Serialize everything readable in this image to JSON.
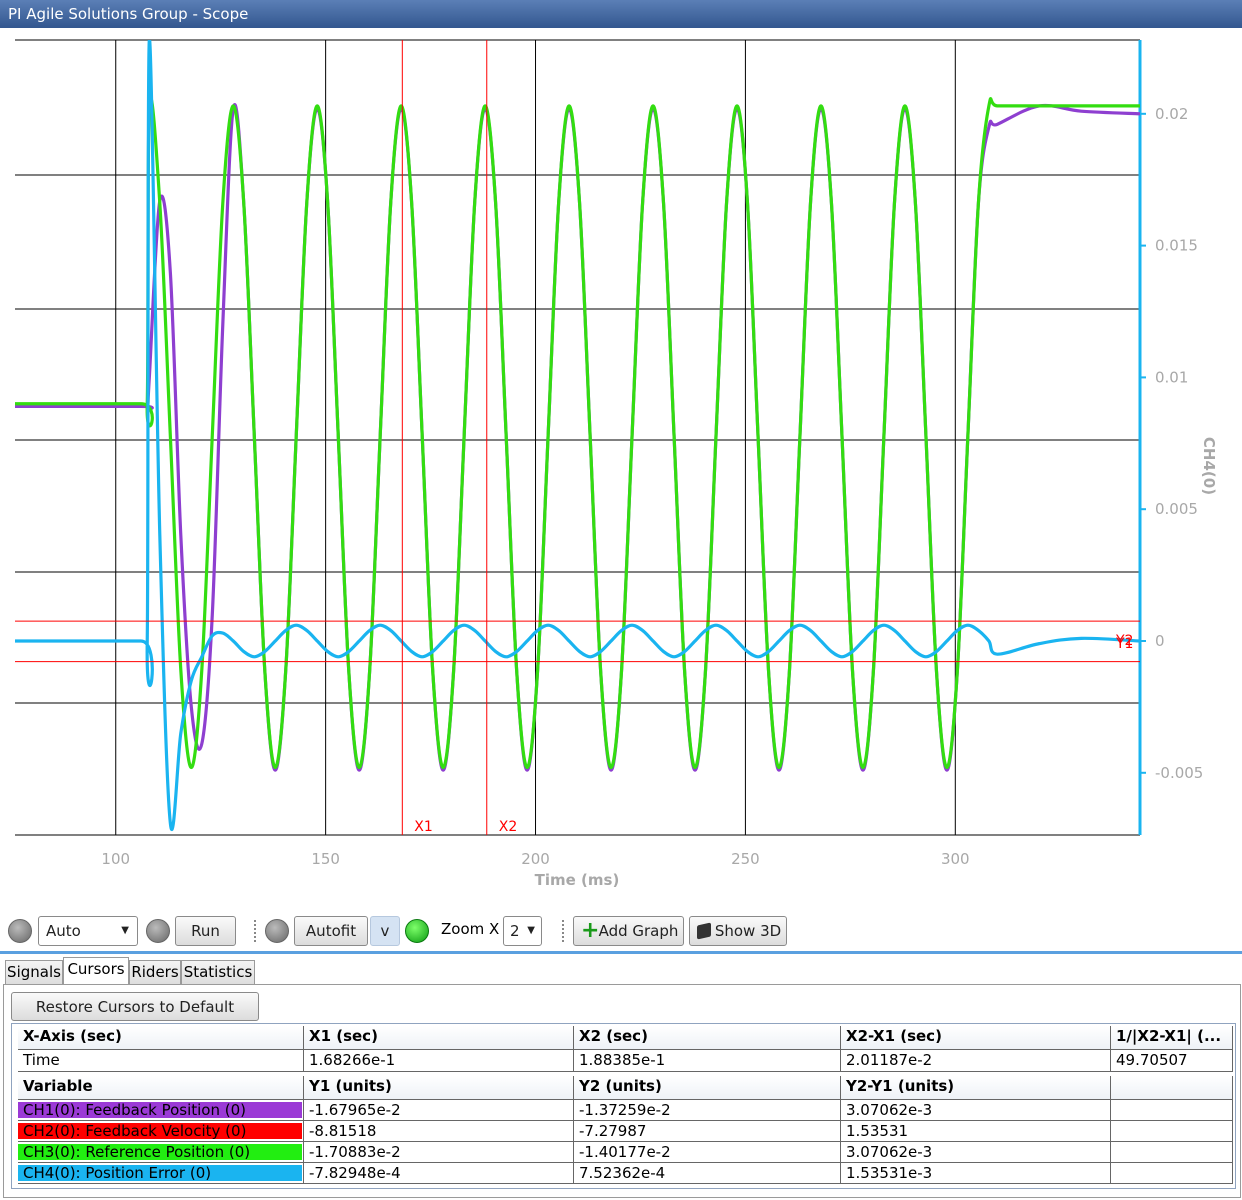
{
  "window": {
    "title": "PI Agile Solutions Group - Scope"
  },
  "chart_data": {
    "type": "line",
    "xlabel": "Time (ms)",
    "ylabel": "CH4(0)",
    "y_axis_side": "right",
    "y_axis_color": "#1ab4f0",
    "xlim": [
      76,
      344
    ],
    "ylim": [
      -0.00736,
      0.0228
    ],
    "xticks": [
      100,
      150,
      200,
      250,
      300
    ],
    "yticks": [
      -0.005,
      0,
      0.005,
      0.01,
      0.015,
      0.02
    ],
    "grid": true,
    "x": [
      76,
      106,
      107.5,
      108,
      110.5,
      113,
      115.5,
      118,
      120.5,
      123,
      125.5,
      128,
      130.5,
      133,
      135.5,
      138,
      140.5,
      143,
      145.5,
      148,
      150.5,
      153,
      155.5,
      158,
      160.5,
      163,
      165.5,
      168,
      170.5,
      173,
      175.5,
      178,
      180.5,
      183,
      185.5,
      188,
      190.5,
      193,
      195.5,
      198,
      200.5,
      203,
      205.5,
      208,
      210.5,
      213,
      215.5,
      218,
      220.5,
      223,
      225.5,
      228,
      230.5,
      233,
      235.5,
      238,
      240.5,
      243,
      245.5,
      248,
      250.5,
      253,
      255.5,
      258,
      260.5,
      263,
      265.5,
      268,
      270.5,
      273,
      275.5,
      278,
      280.5,
      283,
      285.5,
      288,
      290.5,
      293,
      295.5,
      298,
      300.5,
      303,
      305.5,
      308,
      310,
      320,
      330,
      344
    ],
    "series": [
      {
        "color": "#8e3fd0",
        "values": [
          0.0089,
          0.0089,
          0.0089,
          0.01,
          0.0167,
          0.014,
          0.004,
          -0.0025,
          -0.0039,
          0.001,
          0.012,
          0.0202,
          0.0166,
          0.0078,
          -0.0011,
          -0.0049,
          -0.0011,
          0.0078,
          0.0166,
          0.0202,
          0.0166,
          0.0078,
          -0.0011,
          -0.0049,
          -0.0011,
          0.0078,
          0.0166,
          0.0202,
          0.0166,
          0.0078,
          -0.0011,
          -0.0049,
          -0.0011,
          0.0078,
          0.0166,
          0.0202,
          0.0166,
          0.0078,
          -0.0011,
          -0.0049,
          -0.0011,
          0.0078,
          0.0166,
          0.0202,
          0.0166,
          0.0078,
          -0.0011,
          -0.0049,
          -0.0011,
          0.0078,
          0.0166,
          0.0202,
          0.0166,
          0.0078,
          -0.0011,
          -0.0049,
          -0.0011,
          0.0078,
          0.0166,
          0.0202,
          0.0166,
          0.0078,
          -0.0011,
          -0.0049,
          -0.0011,
          0.0078,
          0.0166,
          0.0202,
          0.0166,
          0.0078,
          -0.0011,
          -0.0049,
          -0.0011,
          0.0078,
          0.0166,
          0.0202,
          0.0166,
          0.0078,
          -0.0011,
          -0.0049,
          -0.0011,
          0.0078,
          0.0166,
          0.0195,
          0.0196,
          0.0203,
          0.0201,
          0.02
        ]
      },
      {
        "color": "#33dd11",
        "values": [
          0.009,
          0.009,
          0.009,
          0.0203,
          0.0166,
          0.0078,
          -0.0011,
          -0.0048,
          -0.0011,
          0.0078,
          0.0166,
          0.0203,
          0.0166,
          0.0078,
          -0.0011,
          -0.0048,
          -0.0011,
          0.0078,
          0.0166,
          0.0203,
          0.0166,
          0.0078,
          -0.0011,
          -0.0048,
          -0.0011,
          0.0078,
          0.0166,
          0.0203,
          0.0166,
          0.0078,
          -0.0011,
          -0.0048,
          -0.0011,
          0.0078,
          0.0166,
          0.0203,
          0.0166,
          0.0078,
          -0.0011,
          -0.0048,
          -0.0011,
          0.0078,
          0.0166,
          0.0203,
          0.0166,
          0.0078,
          -0.0011,
          -0.0048,
          -0.0011,
          0.0078,
          0.0166,
          0.0203,
          0.0166,
          0.0078,
          -0.0011,
          -0.0048,
          -0.0011,
          0.0078,
          0.0166,
          0.0203,
          0.0166,
          0.0078,
          -0.0011,
          -0.0048,
          -0.0011,
          0.0078,
          0.0166,
          0.0203,
          0.0166,
          0.0078,
          -0.0011,
          -0.0048,
          -0.0011,
          0.0078,
          0.0166,
          0.0203,
          0.0166,
          0.0078,
          -0.0011,
          -0.0048,
          -0.0011,
          0.0078,
          0.0166,
          0.0203,
          0.0203,
          0.0203,
          0.0203,
          0.0203
        ]
      },
      {
        "color": "#1ab4f0",
        "values": [
          0,
          0,
          0,
          0.0228,
          0.004,
          -0.0069,
          -0.0035,
          -0.0015,
          -0.0006,
          0.0002,
          0.0003,
          0,
          -0.0004,
          -0.0006,
          -0.0004,
          0,
          0.0004,
          0.0006,
          0.0004,
          0,
          -0.0004,
          -0.0006,
          -0.0004,
          0,
          0.0004,
          0.0006,
          0.0004,
          0,
          -0.0004,
          -0.0006,
          -0.0004,
          0,
          0.0004,
          0.0006,
          0.0004,
          0,
          -0.0004,
          -0.0006,
          -0.0004,
          0,
          0.0004,
          0.0006,
          0.0004,
          0,
          -0.0004,
          -0.0006,
          -0.0004,
          0,
          0.0004,
          0.0006,
          0.0004,
          0,
          -0.0004,
          -0.0006,
          -0.0004,
          0,
          0.0004,
          0.0006,
          0.0004,
          0,
          -0.0004,
          -0.0006,
          -0.0004,
          0,
          0.0004,
          0.0006,
          0.0004,
          0,
          -0.0004,
          -0.0006,
          -0.0004,
          0,
          0.0004,
          0.0006,
          0.0004,
          0,
          -0.0004,
          -0.0006,
          -0.0004,
          0,
          0.0004,
          0.0006,
          0.0004,
          0,
          -0.0005,
          -0.0001,
          0.0001,
          0
        ]
      }
    ],
    "cursors": {
      "color": "#ff0000",
      "x": [
        {
          "label": "X1",
          "value": 168.266
        },
        {
          "label": "X2",
          "value": 188.385
        }
      ],
      "y": [
        {
          "label": "Y2",
          "value": 0.000752
        },
        {
          "label": "Y1",
          "value": -0.000783
        }
      ]
    }
  },
  "toolbar": {
    "mode": "Auto",
    "run": "Run",
    "autofit": "Autofit",
    "v": "v",
    "zoom_label": "Zoom X",
    "zoom_value": "2",
    "add_graph": "Add Graph",
    "show_3d": "Show 3D"
  },
  "tabs": [
    "Signals",
    "Cursors",
    "Riders",
    "Statistics"
  ],
  "cursors_panel": {
    "restore_button": "Restore Cursors to Default Location",
    "x_header": [
      "X-Axis (sec)",
      "X1 (sec)",
      "X2 (sec)",
      "X2-X1 (sec)",
      "1/|X2-X1| (..."
    ],
    "x_row": [
      "Time",
      "1.68266e-1",
      "1.88385e-1",
      "2.01187e-2",
      "49.70507"
    ],
    "y_header": [
      "Variable",
      "Y1 (units)",
      "Y2 (units)",
      "Y2-Y1 (units)"
    ],
    "y_rows": [
      {
        "name": "CH1(0): Feedback Position (0)",
        "color": "#9b3ad6",
        "cells": [
          "-1.67965e-2",
          "-1.37259e-2",
          "3.07062e-3"
        ]
      },
      {
        "name": "CH2(0): Feedback Velocity (0)",
        "color": "#ff0000",
        "cells": [
          "-8.81518",
          "-7.27987",
          "1.53531"
        ]
      },
      {
        "name": "CH3(0): Reference Position (0)",
        "color": "#22ee11",
        "cells": [
          "-1.70883e-2",
          "-1.40177e-2",
          "3.07062e-3"
        ]
      },
      {
        "name": "CH4(0): Position Error (0)",
        "color": "#1ab4f0",
        "cells": [
          "-7.82948e-4",
          "7.52362e-4",
          "1.53531e-3"
        ]
      }
    ]
  }
}
